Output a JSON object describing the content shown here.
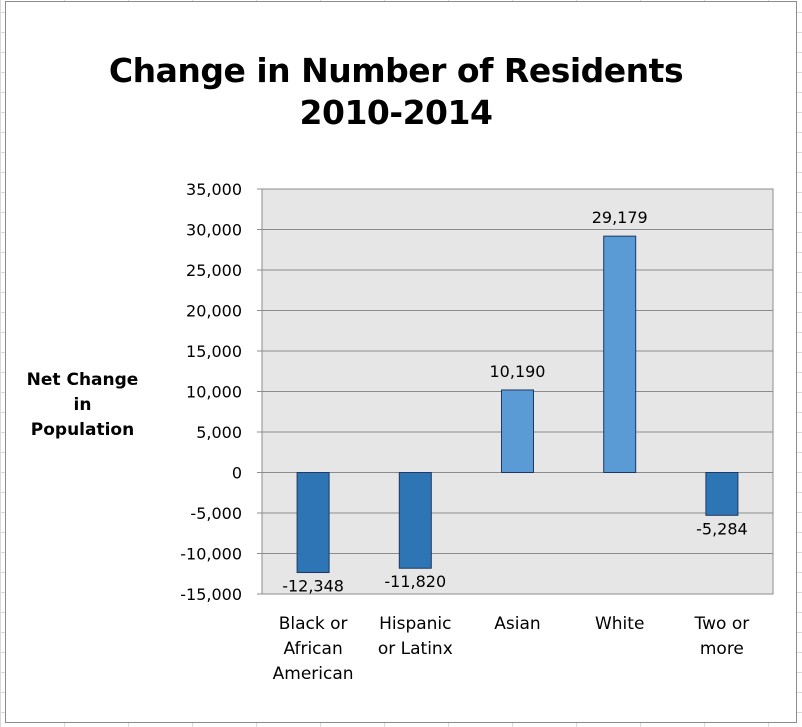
{
  "chart_data": {
    "type": "bar",
    "title_lines": [
      "Change in Number of Residents",
      "2010-2014"
    ],
    "ylabel_lines": [
      "Net Change",
      "in Population"
    ],
    "xlabel": "",
    "categories": [
      [
        "Black or",
        "African",
        "American"
      ],
      [
        "Hispanic",
        "or Latinx"
      ],
      [
        "Asian"
      ],
      [
        "White"
      ],
      [
        "Two or",
        "more"
      ]
    ],
    "values": [
      -12348,
      -11820,
      10190,
      29179,
      -5284
    ],
    "value_labels": [
      "-12,348",
      "-11,820",
      "10,190",
      "29,179",
      "-5,284"
    ],
    "ylim": [
      -15000,
      35000
    ],
    "ytick_step": 5000,
    "ytick_labels": [
      "35,000",
      "30,000",
      "25,000",
      "20,000",
      "15,000",
      "10,000",
      "5,000",
      "0",
      "-5,000",
      "-10,000",
      "-15,000"
    ],
    "grid": true,
    "legend": "none",
    "colors": {
      "negative_bar": "#2e75b6",
      "positive_bar": "#5b9bd5",
      "bar_border": "#1f3864",
      "plot_background": "#e6e6e6",
      "gridline": "#8c8c8c"
    }
  }
}
